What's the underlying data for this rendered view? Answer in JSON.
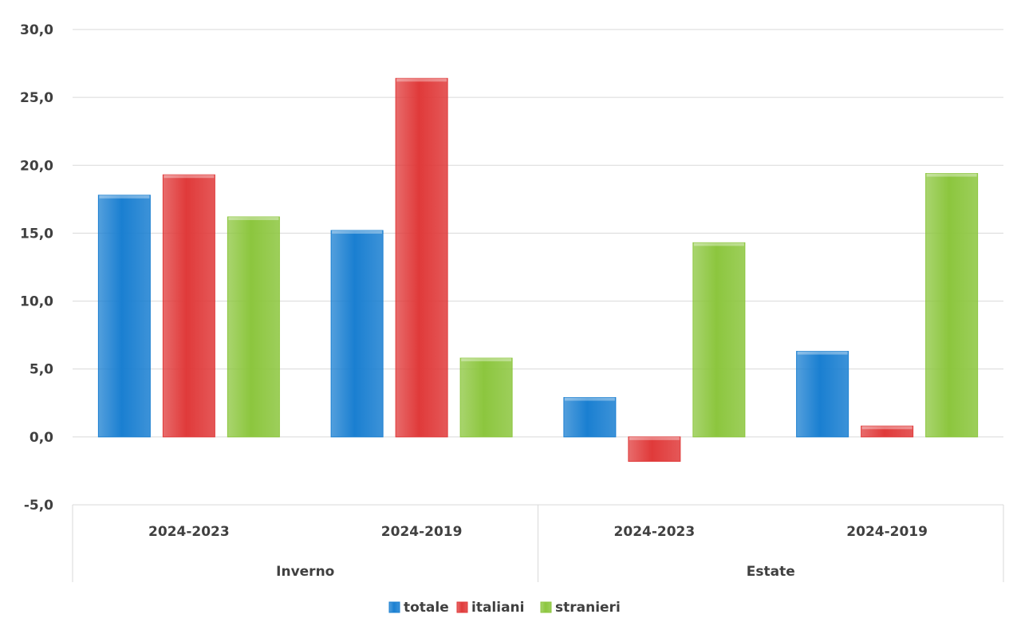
{
  "chart_data": {
    "type": "bar",
    "groups": [
      {
        "label": "Inverno",
        "categories": [
          "2024-2023",
          "2024-2019"
        ]
      },
      {
        "label": "Estate",
        "categories": [
          "2024-2023",
          "2024-2019"
        ]
      }
    ],
    "categories": [
      "2024-2023",
      "2024-2019",
      "2024-2023",
      "2024-2019"
    ],
    "series": [
      {
        "name": "totale",
        "color": "#1a7fd1",
        "values": [
          17.8,
          15.2,
          2.9,
          6.3
        ]
      },
      {
        "name": "italiani",
        "color": "#e03a3a",
        "values": [
          19.3,
          26.4,
          -1.8,
          0.8
        ]
      },
      {
        "name": "stranieri",
        "color": "#8cc63e",
        "values": [
          16.2,
          5.8,
          14.3,
          19.4
        ]
      }
    ],
    "ylim": [
      -5,
      30
    ],
    "yticks": [
      -5,
      0,
      5,
      10,
      15,
      20,
      25,
      30
    ],
    "ytick_labels": [
      "-5,0",
      "0,0",
      "5,0",
      "10,0",
      "15,0",
      "20,0",
      "25,0",
      "30,0"
    ],
    "grid": true,
    "legend_position": "bottom",
    "title": "",
    "xlabel": "",
    "ylabel": ""
  }
}
